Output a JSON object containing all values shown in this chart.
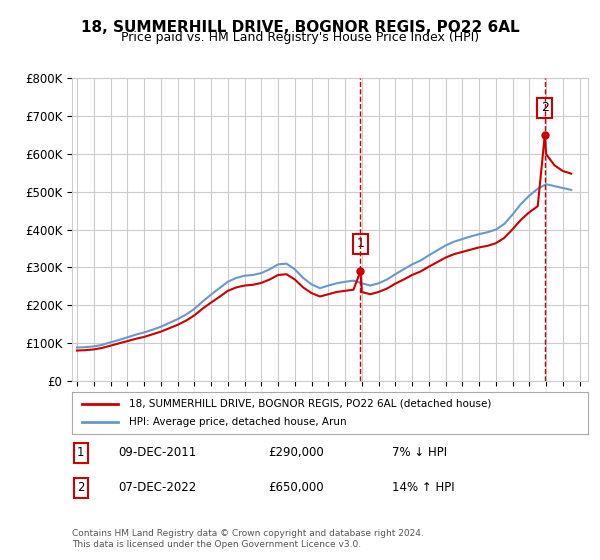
{
  "title": "18, SUMMERHILL DRIVE, BOGNOR REGIS, PO22 6AL",
  "subtitle": "Price paid vs. HM Land Registry's House Price Index (HPI)",
  "legend_line1": "18, SUMMERHILL DRIVE, BOGNOR REGIS, PO22 6AL (detached house)",
  "legend_line2": "HPI: Average price, detached house, Arun",
  "footnote": "Contains HM Land Registry data © Crown copyright and database right 2024.\nThis data is licensed under the Open Government Licence v3.0.",
  "sale1_label": "1",
  "sale1_date": "09-DEC-2011",
  "sale1_price": "£290,000",
  "sale1_hpi": "7% ↓ HPI",
  "sale1_year": 2011.92,
  "sale1_value": 290000,
  "sale2_label": "2",
  "sale2_date": "07-DEC-2022",
  "sale2_price": "£650,000",
  "sale2_hpi": "14% ↑ HPI",
  "sale2_year": 2022.92,
  "sale2_value": 650000,
  "red_line_color": "#cc0000",
  "blue_line_color": "#6699cc",
  "grid_color": "#cccccc",
  "background_color": "#ffffff",
  "ylim": [
    0,
    800000
  ],
  "xlim_start": 1995.0,
  "xlim_end": 2025.5,
  "hpi_years": [
    1995.0,
    1995.5,
    1996.0,
    1996.5,
    1997.0,
    1997.5,
    1998.0,
    1998.5,
    1999.0,
    1999.5,
    2000.0,
    2000.5,
    2001.0,
    2001.5,
    2002.0,
    2002.5,
    2003.0,
    2003.5,
    2004.0,
    2004.5,
    2005.0,
    2005.5,
    2006.0,
    2006.5,
    2007.0,
    2007.5,
    2008.0,
    2008.5,
    2009.0,
    2009.5,
    2010.0,
    2010.5,
    2011.0,
    2011.5,
    2012.0,
    2012.5,
    2013.0,
    2013.5,
    2014.0,
    2014.5,
    2015.0,
    2015.5,
    2016.0,
    2016.5,
    2017.0,
    2017.5,
    2018.0,
    2018.5,
    2019.0,
    2019.5,
    2020.0,
    2020.5,
    2021.0,
    2021.5,
    2022.0,
    2022.5,
    2023.0,
    2023.5,
    2024.0,
    2024.5
  ],
  "hpi_values": [
    88000,
    89000,
    91000,
    95000,
    102000,
    108000,
    115000,
    122000,
    128000,
    135000,
    143000,
    153000,
    163000,
    175000,
    190000,
    210000,
    228000,
    245000,
    262000,
    272000,
    278000,
    280000,
    285000,
    295000,
    308000,
    310000,
    295000,
    272000,
    255000,
    245000,
    252000,
    258000,
    262000,
    265000,
    258000,
    252000,
    258000,
    268000,
    282000,
    295000,
    308000,
    318000,
    332000,
    345000,
    358000,
    368000,
    375000,
    382000,
    388000,
    393000,
    400000,
    415000,
    440000,
    468000,
    490000,
    508000,
    520000,
    515000,
    510000,
    505000
  ],
  "red_years": [
    1995.0,
    1995.5,
    1996.0,
    1996.5,
    1997.0,
    1997.5,
    1998.0,
    1998.5,
    1999.0,
    1999.5,
    2000.0,
    2000.5,
    2001.0,
    2001.5,
    2002.0,
    2002.5,
    2003.0,
    2003.5,
    2004.0,
    2004.5,
    2005.0,
    2005.5,
    2006.0,
    2006.5,
    2007.0,
    2007.5,
    2008.0,
    2008.5,
    2009.0,
    2009.5,
    2010.0,
    2010.5,
    2011.0,
    2011.5,
    2011.92,
    2012.0,
    2012.5,
    2013.0,
    2013.5,
    2014.0,
    2014.5,
    2015.0,
    2015.5,
    2016.0,
    2016.5,
    2017.0,
    2017.5,
    2018.0,
    2018.5,
    2019.0,
    2019.5,
    2020.0,
    2020.5,
    2021.0,
    2021.5,
    2022.0,
    2022.5,
    2022.92,
    2023.0,
    2023.5,
    2024.0,
    2024.5
  ],
  "red_values": [
    80000,
    81000,
    83000,
    87000,
    93000,
    99000,
    105000,
    111000,
    116000,
    123000,
    130000,
    139000,
    148000,
    159000,
    173000,
    191000,
    207000,
    222000,
    238000,
    247000,
    252000,
    254000,
    259000,
    268000,
    280000,
    282000,
    268000,
    247000,
    232000,
    223000,
    229000,
    235000,
    238000,
    241000,
    290000,
    235000,
    229000,
    235000,
    244000,
    257000,
    268000,
    280000,
    289000,
    302000,
    314000,
    326000,
    335000,
    341000,
    347000,
    353000,
    357000,
    364000,
    378000,
    401000,
    426000,
    446000,
    462000,
    650000,
    600000,
    570000,
    555000,
    548000
  ]
}
